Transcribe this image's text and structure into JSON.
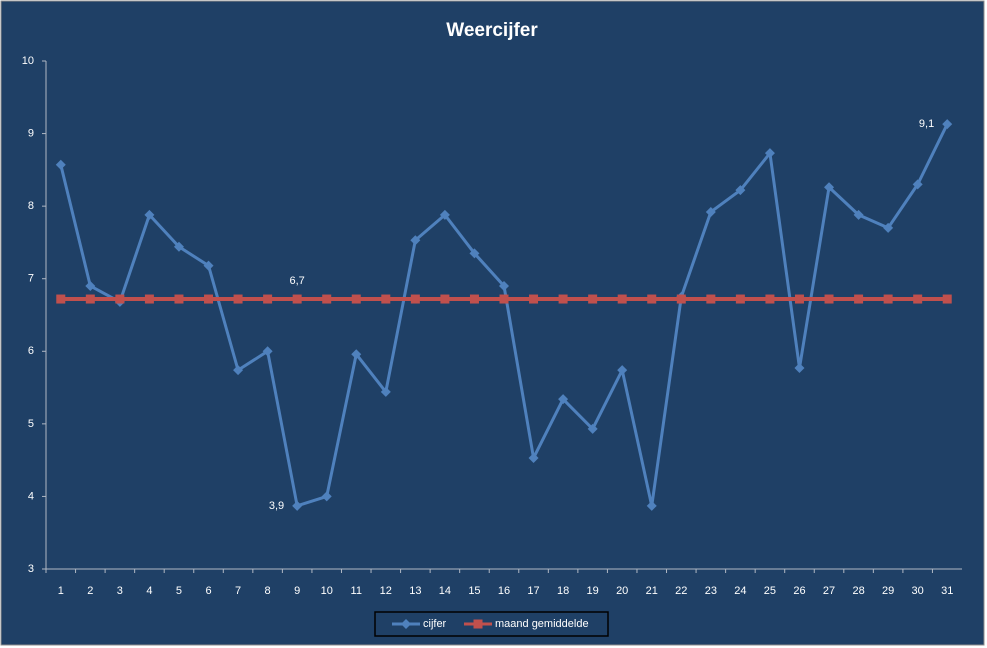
{
  "chart_data": {
    "type": "line",
    "title": "Weercijfer",
    "categories": [
      1,
      2,
      3,
      4,
      5,
      6,
      7,
      8,
      9,
      10,
      11,
      12,
      13,
      14,
      15,
      16,
      17,
      18,
      19,
      20,
      21,
      22,
      23,
      24,
      25,
      26,
      27,
      28,
      29,
      30,
      31
    ],
    "series": [
      {
        "name": "cijfer",
        "color": "#4f81bd",
        "marker": "diamond",
        "values": [
          8.57,
          6.9,
          6.68,
          7.88,
          7.44,
          7.18,
          5.74,
          6.0,
          3.87,
          4.0,
          5.96,
          5.44,
          7.53,
          7.88,
          7.35,
          6.9,
          4.53,
          5.34,
          4.93,
          5.74,
          3.87,
          6.75,
          7.92,
          8.22,
          8.73,
          5.77,
          8.26,
          7.88,
          7.7,
          8.3,
          9.13
        ],
        "value_labels": [
          null,
          null,
          null,
          null,
          null,
          null,
          null,
          null,
          "3,9",
          null,
          null,
          null,
          null,
          null,
          null,
          null,
          null,
          null,
          null,
          null,
          null,
          null,
          null,
          null,
          null,
          null,
          null,
          null,
          null,
          null,
          "9,1"
        ]
      },
      {
        "name": "maand gemiddelde",
        "color": "#c0504d",
        "marker": "square",
        "values": [
          6.72,
          6.72,
          6.72,
          6.72,
          6.72,
          6.72,
          6.72,
          6.72,
          6.72,
          6.72,
          6.72,
          6.72,
          6.72,
          6.72,
          6.72,
          6.72,
          6.72,
          6.72,
          6.72,
          6.72,
          6.72,
          6.72,
          6.72,
          6.72,
          6.72,
          6.72,
          6.72,
          6.72,
          6.72,
          6.72,
          6.72
        ],
        "value_labels": [
          null,
          null,
          null,
          null,
          null,
          null,
          null,
          null,
          "6,7",
          null,
          null,
          null,
          null,
          null,
          null,
          null,
          null,
          null,
          null,
          null,
          null,
          null,
          null,
          null,
          null,
          null,
          null,
          null,
          null,
          null,
          null
        ]
      }
    ],
    "ylim": [
      3,
      10
    ],
    "yticks": [
      3,
      4,
      5,
      6,
      7,
      8,
      9,
      10
    ],
    "grid": false,
    "legend": "bottom"
  }
}
